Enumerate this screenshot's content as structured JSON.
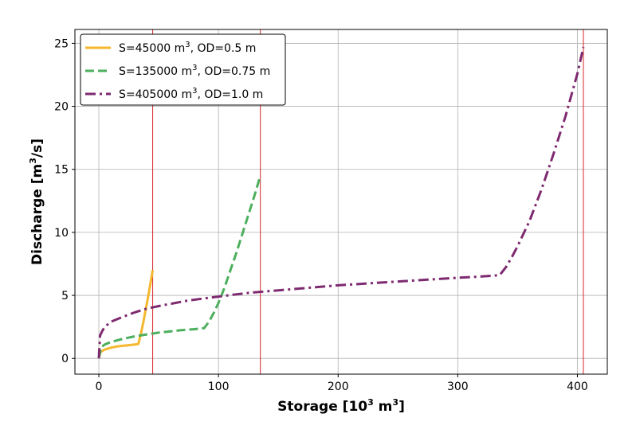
{
  "chart_data": {
    "type": "line",
    "xlabel": "Storage [10",
    "xlabel_sup": "3",
    "xlabel_mid": " m",
    "xlabel_sup2": "3",
    "xlabel_end": "]",
    "ylabel": "Discharge [m",
    "ylabel_sup": "3",
    "ylabel_end": "/s]",
    "xlim": [
      -20,
      425
    ],
    "ylim": [
      -1.25,
      26.1
    ],
    "xticks": [
      0,
      100,
      200,
      300,
      400
    ],
    "yticks": [
      0,
      5,
      10,
      15,
      20,
      25
    ],
    "grid": true,
    "legend_position": "top-left",
    "vlines": [
      {
        "x": 45,
        "color": "#d62728"
      },
      {
        "x": 135,
        "color": "#d62728"
      },
      {
        "x": 405,
        "color": "#d62728"
      }
    ],
    "series": [
      {
        "name": "S=45000 m",
        "name_sup": "3",
        "name_end": ", OD=0.5 m",
        "color": "#f5b82e",
        "dash": "solid",
        "x": [
          0,
          1,
          2,
          5,
          10,
          15,
          20,
          25,
          30,
          33,
          35,
          37,
          39,
          41,
          43,
          45
        ],
        "y": [
          0,
          0.4,
          0.55,
          0.7,
          0.85,
          0.95,
          1.0,
          1.05,
          1.1,
          1.15,
          1.9,
          2.8,
          3.8,
          4.8,
          5.9,
          7.0
        ]
      },
      {
        "name": "S=135000 m",
        "name_sup": "3",
        "name_end": ", OD=0.75 m",
        "color": "#4daf5e",
        "dash": "dashed",
        "x": [
          0,
          2,
          5,
          10,
          20,
          30,
          40,
          50,
          60,
          70,
          80,
          88,
          92,
          96,
          100,
          105,
          110,
          115,
          120,
          125,
          130,
          135
        ],
        "y": [
          0,
          0.9,
          1.1,
          1.3,
          1.55,
          1.75,
          1.9,
          2.05,
          2.15,
          2.25,
          2.32,
          2.4,
          2.9,
          3.6,
          4.4,
          5.6,
          7.0,
          8.4,
          9.9,
          11.4,
          12.9,
          14.5
        ]
      },
      {
        "name": "S=405000 m",
        "name_sup": "3",
        "name_end": ", OD=1.0 m",
        "color": "#7e2a70",
        "dash": "dashdot",
        "x": [
          0,
          1,
          3,
          5,
          10,
          20,
          30,
          40,
          50,
          75,
          100,
          125,
          150,
          175,
          200,
          225,
          250,
          275,
          300,
          320,
          335,
          340,
          345,
          350,
          360,
          370,
          380,
          390,
          400,
          405
        ],
        "y": [
          0,
          1.8,
          2.2,
          2.5,
          2.9,
          3.3,
          3.65,
          3.95,
          4.15,
          4.6,
          4.9,
          5.2,
          5.4,
          5.6,
          5.8,
          5.95,
          6.1,
          6.25,
          6.4,
          6.5,
          6.6,
          7.2,
          8.0,
          8.9,
          10.9,
          13.4,
          16.2,
          19.2,
          22.6,
          24.7
        ]
      }
    ]
  }
}
